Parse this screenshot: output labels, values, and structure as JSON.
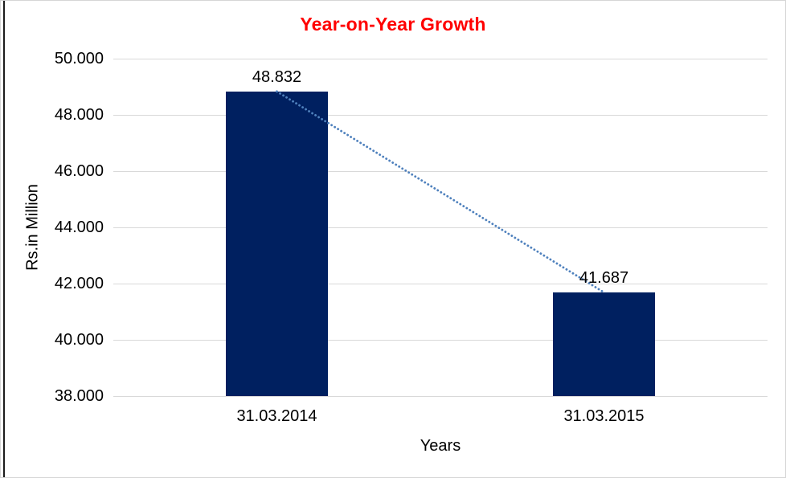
{
  "chart_data": {
    "type": "bar",
    "title": "Year-on-Year Growth",
    "xlabel": "Years",
    "ylabel": "Rs.in Million",
    "categories": [
      "31.03.2014",
      "31.03.2015"
    ],
    "values": [
      48832,
      41687
    ],
    "value_labels": [
      "48.832",
      "41.687"
    ],
    "ylim": [
      38000,
      50000
    ],
    "yticks": [
      {
        "value": 38000,
        "label": "38.000"
      },
      {
        "value": 40000,
        "label": "40.000"
      },
      {
        "value": 42000,
        "label": "42.000"
      },
      {
        "value": 44000,
        "label": "44.000"
      },
      {
        "value": 46000,
        "label": "46.000"
      },
      {
        "value": 48000,
        "label": "48.000"
      },
      {
        "value": 50000,
        "label": "50.000"
      }
    ],
    "grid": true,
    "legend": "none",
    "trendline": {
      "style": "dotted",
      "color": "#4f81bd",
      "connects": "bar tops"
    },
    "colors": {
      "bar": "#002060",
      "title": "#ff0000",
      "gridline": "#d9d9d9",
      "label_text": "#000000"
    }
  }
}
